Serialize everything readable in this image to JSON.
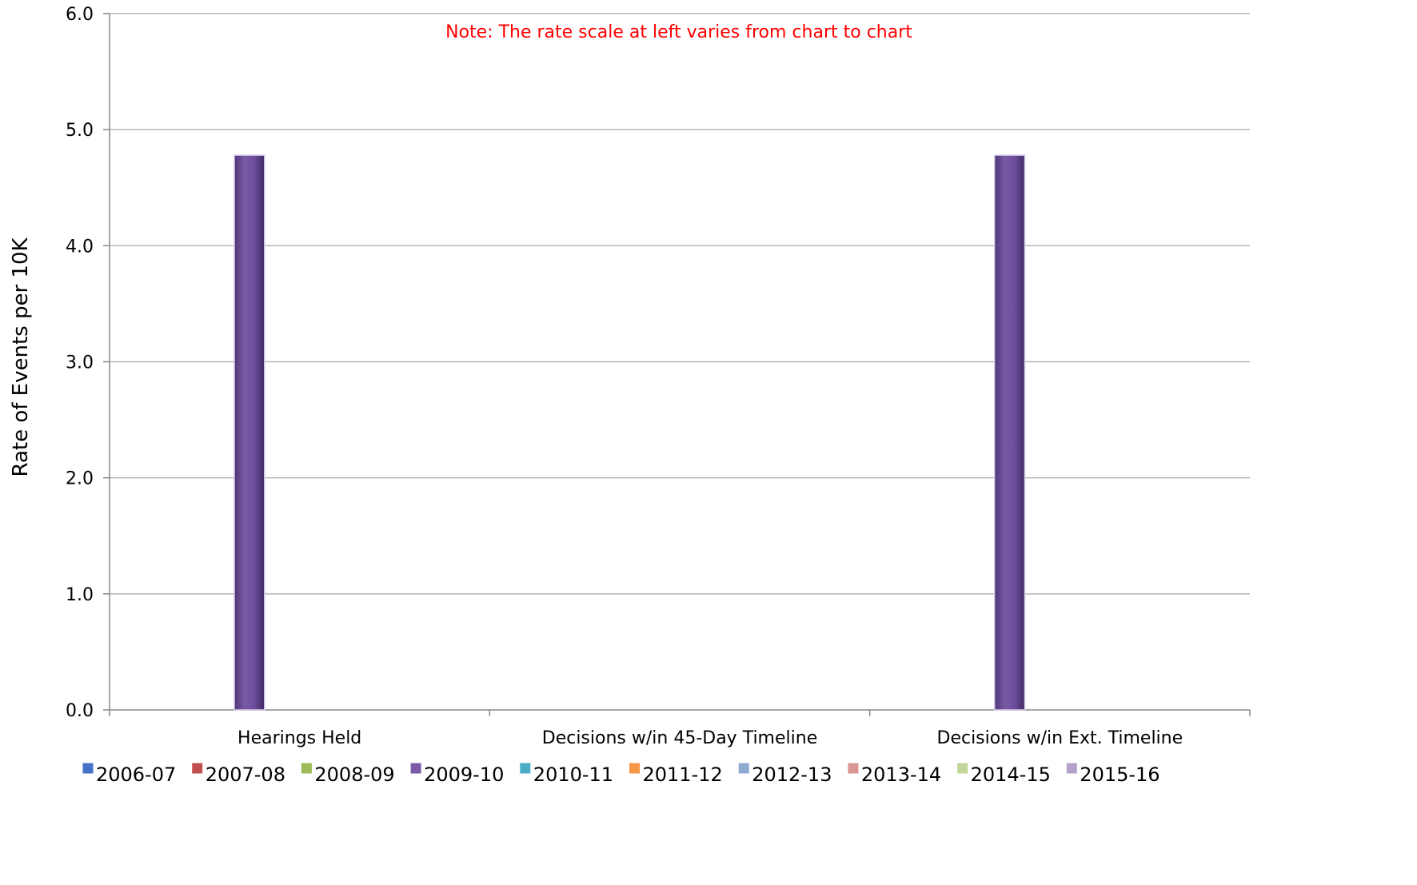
{
  "chart_data": {
    "type": "bar",
    "categories": [
      "Hearings Held",
      "Decisions w/in 45-Day Timeline",
      "Decisions w/in Ext. Timeline"
    ],
    "series": [
      {
        "name": "2006-07",
        "color": "#4472c4",
        "values": [
          0,
          0,
          0
        ]
      },
      {
        "name": "2007-08",
        "color": "#c0504d",
        "values": [
          0,
          0,
          0
        ]
      },
      {
        "name": "2008-09",
        "color": "#9bbb59",
        "values": [
          0,
          0,
          0
        ]
      },
      {
        "name": "2009-10",
        "color": "#7a5aa6",
        "values": [
          4.78,
          0,
          4.78
        ]
      },
      {
        "name": "2010-11",
        "color": "#4bacc6",
        "values": [
          0,
          0,
          0
        ]
      },
      {
        "name": "2011-12",
        "color": "#f79646",
        "values": [
          0,
          0,
          0
        ]
      },
      {
        "name": "2012-13",
        "color": "#8fa8cf",
        "values": [
          0,
          0,
          0
        ]
      },
      {
        "name": "2013-14",
        "color": "#d99694",
        "values": [
          0,
          0,
          0
        ]
      },
      {
        "name": "2014-15",
        "color": "#c3d69b",
        "values": [
          0,
          0,
          0
        ]
      },
      {
        "name": "2015-16",
        "color": "#b3a2c7",
        "values": [
          0,
          0,
          0
        ]
      }
    ],
    "ylabel": "Rate of Events per 10K",
    "xlabel": "",
    "ylim": [
      0,
      6
    ],
    "yticks": [
      "0.0",
      "1.0",
      "2.0",
      "3.0",
      "4.0",
      "5.0",
      "6.0"
    ],
    "grid": true,
    "legend_position": "bottom",
    "annotation": "Note:  The rate scale at left varies from chart to chart",
    "annotation_color": "#ff0000"
  }
}
